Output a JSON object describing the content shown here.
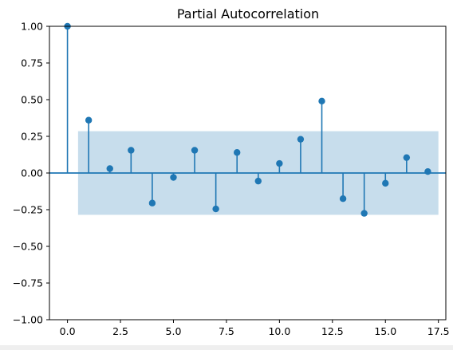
{
  "chart_data": {
    "type": "stem",
    "title": "Partial Autocorrelation",
    "xlabel": "",
    "ylabel": "",
    "xlim": [
      -0.85,
      17.85
    ],
    "ylim": [
      -1.0,
      1.0
    ],
    "x_ticks": [
      0.0,
      2.5,
      5.0,
      7.5,
      10.0,
      12.5,
      15.0,
      17.5
    ],
    "x_tick_labels": [
      "0.0",
      "2.5",
      "5.0",
      "7.5",
      "10.0",
      "12.5",
      "15.0",
      "17.5"
    ],
    "y_ticks": [
      1.0,
      0.75,
      0.5,
      0.25,
      0.0,
      -0.25,
      -0.5,
      -0.75,
      -1.0
    ],
    "y_tick_labels": [
      "1.00",
      "0.75",
      "0.50",
      "0.25",
      "0.00",
      "−0.25",
      "−0.50",
      "−0.75",
      "−1.00"
    ],
    "grid": false,
    "series": [
      {
        "lags": [
          0,
          1,
          2,
          3,
          4,
          5,
          6,
          7,
          8,
          9,
          10,
          11,
          12,
          13,
          14,
          15,
          16,
          17
        ],
        "values": [
          1.0,
          0.36,
          0.03,
          0.155,
          -0.205,
          -0.03,
          0.155,
          -0.245,
          0.14,
          -0.055,
          0.065,
          0.23,
          0.49,
          -0.175,
          -0.275,
          -0.07,
          0.105,
          0.01
        ]
      }
    ],
    "confidence_band": {
      "x_range": [
        0.5,
        17.5
      ],
      "lower": -0.285,
      "upper": 0.285
    },
    "colors": {
      "stem": "#1f77b4",
      "band": "#1f77b4",
      "band_opacity": 0.25,
      "axis": "#000000"
    }
  }
}
